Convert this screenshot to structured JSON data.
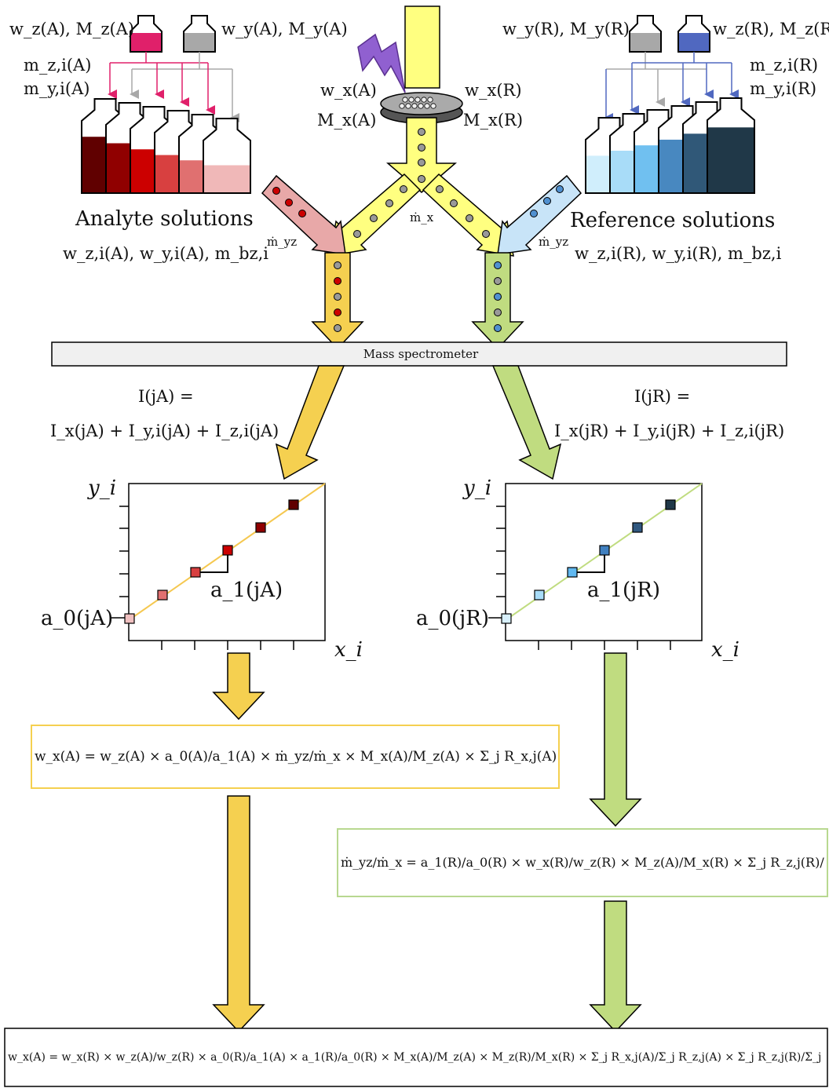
{
  "labels": {
    "analyte_top": "w_z(A), M_z(A)",
    "analyte_top_y": "w_y(A), M_y(A)",
    "analyte_mz": "m_z,i(A)",
    "analyte_my": "m_y,i(A)",
    "reference_top_y": "w_y(R), M_y(R)",
    "reference_top_z": "w_z(R), M_z(R)",
    "reference_mz": "m_z,i(R)",
    "reference_my": "m_y,i(R)",
    "sample_wA": "w_x(A)",
    "sample_MA": "M_x(A)",
    "sample_wR": "w_x(R)",
    "sample_MR": "M_x(R)",
    "analyte_solutions": "Analyte solutions",
    "analyte_solutions_vars": "w_z,i(A), w_y,i(A), m_bz,i",
    "reference_solutions": "Reference solutions",
    "reference_solutions_vars": "w_z,i(R), w_y,i(R), m_bz,i",
    "mdot_x": "ṁ_x",
    "mdot_yz_left": "ṁ_yz",
    "mdot_yz_right": "ṁ_yz",
    "mass_spectrometer": "Mass spectrometer",
    "intensity_A_line1": "I(jA) =",
    "intensity_A_line2": "I_x(jA) + I_y,i(jA) + I_z,i(jA)",
    "intensity_R_line1": "I(jR) =",
    "intensity_R_line2": "I_x(jR) + I_y,i(jR) + I_z,i(jR)",
    "plot_A_y": "y_i",
    "plot_A_x": "x_i",
    "plot_A_a0": "a_0(jA)",
    "plot_A_a1": "a_1(jA)",
    "plot_R_y": "y_i",
    "plot_R_x": "x_i",
    "plot_R_a0": "a_0(jR)",
    "plot_R_a1": "a_1(jR)",
    "eq_A": "w_x(A) = w_z(A) × a_0(A)/a_1(A) × ṁ_yz/ṁ_x × M_x(A)/M_z(A) × Σ_j R_x,j(A)/Σ_j R_z,j(A)",
    "eq_R": "ṁ_yz/ṁ_x = a_1(R)/a_0(R) × w_x(R)/w_z(R) × M_z(A)/M_x(R) × Σ_j R_z,j(R)/Σ_j R_x,j(R)",
    "eq_final": "w_x(A) = w_x(R) × w_z(A)/w_z(R) × a_0(R)/a_1(A) × a_1(R)/a_0(R) × M_x(A)/M_z(A) × M_z(R)/M_x(R) × Σ_j R_x,j(A)/Σ_j R_z,j(A) × Σ_j R_z,j(R)/Σ_j R_x,j(R)"
  },
  "colors": {
    "yellow": "#ffff80",
    "yellow_dark": "#f5d050",
    "green": "#c0dc80",
    "pink": "#e8a8a8",
    "light_blue": "#c8e4f8",
    "magenta": "#e0206a",
    "grey": "#a8a8a8",
    "blue": "#5068c0",
    "purple": "#9060d0",
    "box_yellow": "#f5d050",
    "box_green": "#b8d890"
  }
}
